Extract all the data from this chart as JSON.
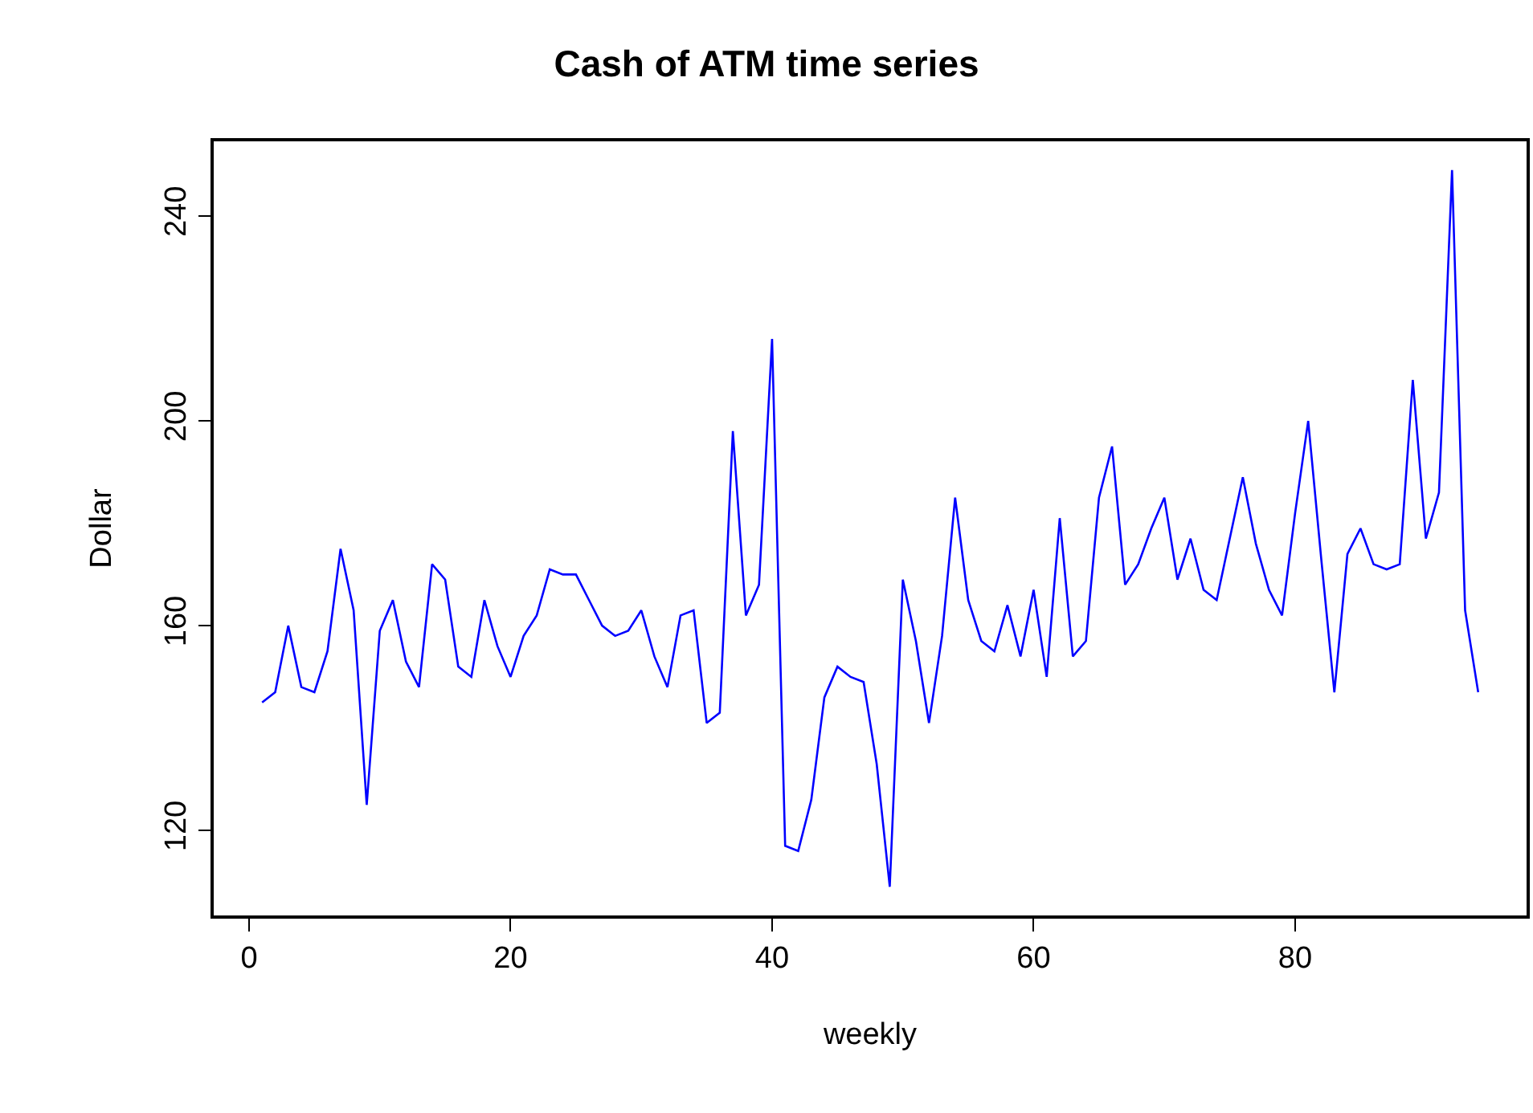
{
  "chart_data": {
    "type": "line",
    "title": "Cash of ATM time series",
    "xlabel": "weekly",
    "ylabel": "Dollar",
    "x": [
      1,
      2,
      3,
      4,
      5,
      6,
      7,
      8,
      9,
      10,
      11,
      12,
      13,
      14,
      15,
      16,
      17,
      18,
      19,
      20,
      21,
      22,
      23,
      24,
      25,
      26,
      27,
      28,
      29,
      30,
      31,
      32,
      33,
      34,
      35,
      36,
      37,
      38,
      39,
      40,
      41,
      42,
      43,
      44,
      45,
      46,
      47,
      48,
      49,
      50,
      51,
      52,
      53,
      54,
      55,
      56,
      57,
      58,
      59,
      60,
      61,
      62,
      63,
      64,
      65,
      66,
      67,
      68,
      69,
      70,
      71,
      72,
      73,
      74,
      75,
      76,
      77,
      78,
      79,
      80,
      81,
      82,
      83,
      84,
      85,
      86,
      87,
      88,
      89,
      90,
      91,
      92,
      93,
      94
    ],
    "series": [
      {
        "color": "#0000ff",
        "values": [
          145,
          147,
          160,
          148,
          147,
          155,
          175,
          163,
          125,
          159,
          165,
          153,
          148,
          172,
          169,
          152,
          150,
          165,
          156,
          150,
          158,
          162,
          171,
          170,
          170,
          165,
          160,
          158,
          159,
          163,
          154,
          148,
          162,
          163,
          141,
          143,
          198,
          162,
          168,
          216,
          117,
          116,
          126,
          146,
          152,
          150,
          149,
          133,
          109,
          169,
          157,
          141,
          158,
          185,
          165,
          157,
          155,
          164,
          154,
          167,
          150,
          181,
          154,
          157,
          185,
          195,
          168,
          172,
          179,
          185,
          169,
          177,
          167,
          165,
          177,
          189,
          176,
          167,
          162,
          182,
          200,
          173,
          147,
          174,
          179,
          172,
          171,
          172,
          208,
          177,
          186,
          249,
          163,
          147
        ]
      }
    ],
    "xlim": [
      -2.7,
      97.7
    ],
    "xticks": [
      0,
      20,
      40,
      60,
      80
    ],
    "ylim": [
      103.4,
      254.6
    ],
    "yticks": [
      120,
      160,
      200,
      240
    ],
    "grid": false,
    "marker": "none",
    "line_style": "solid"
  }
}
